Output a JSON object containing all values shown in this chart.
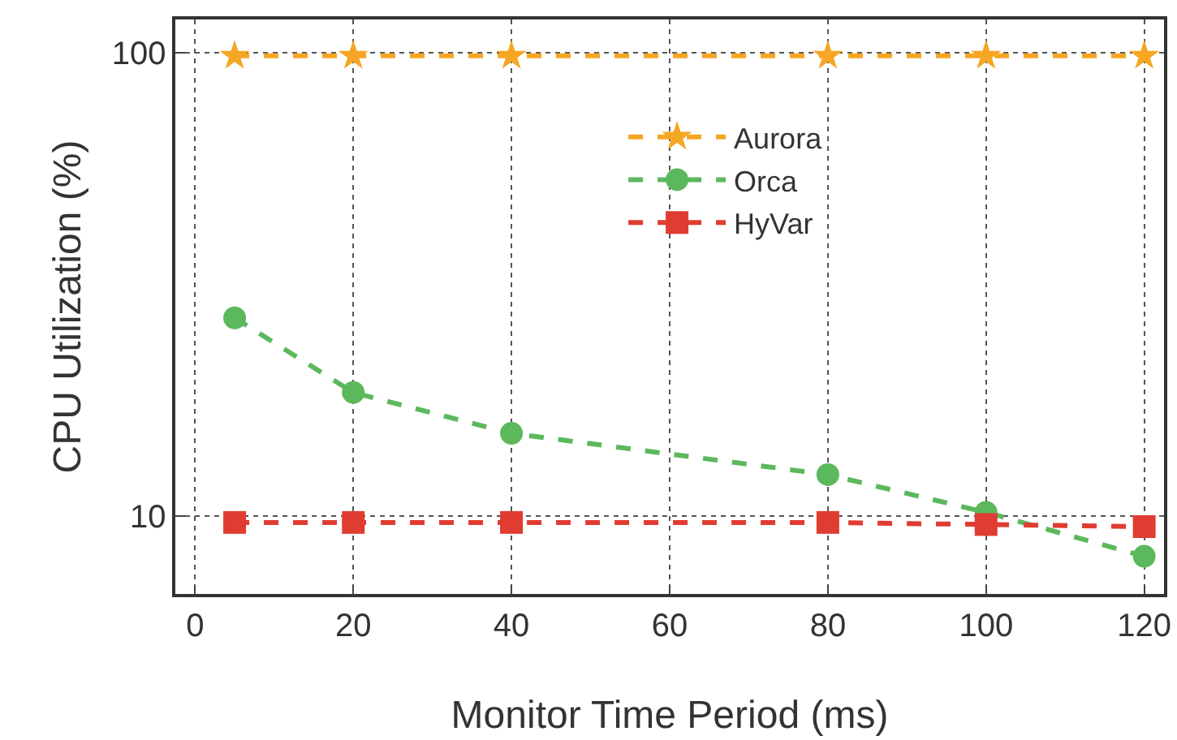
{
  "chart_data": {
    "type": "line",
    "xlabel": "Monitor Time Period (ms)",
    "ylabel": "CPU Utilization (%)",
    "x": [
      5,
      20,
      40,
      80,
      100,
      120
    ],
    "series": [
      {
        "name": "Aurora",
        "color": "#f5a623",
        "marker": "star",
        "values": [
          98.5,
          98.5,
          98.5,
          98.5,
          98.5,
          98.5
        ]
      },
      {
        "name": "Orca",
        "color": "#5cb85c",
        "marker": "circle",
        "values": [
          26.8,
          18.5,
          15.1,
          12.3,
          10.2,
          8.2
        ]
      },
      {
        "name": "HyVar",
        "color": "#e03c31",
        "marker": "square",
        "values": [
          9.7,
          9.7,
          9.7,
          9.7,
          9.6,
          9.5
        ]
      }
    ],
    "log": true,
    "xlim": [
      -2.5,
      122.5
    ],
    "xticks": [
      0,
      20,
      40,
      60,
      80,
      100,
      120
    ],
    "ylim": [
      6.8,
      118
    ],
    "yticks": [
      10,
      100
    ],
    "grid": true,
    "legend": "right",
    "line_style": "dashed"
  }
}
